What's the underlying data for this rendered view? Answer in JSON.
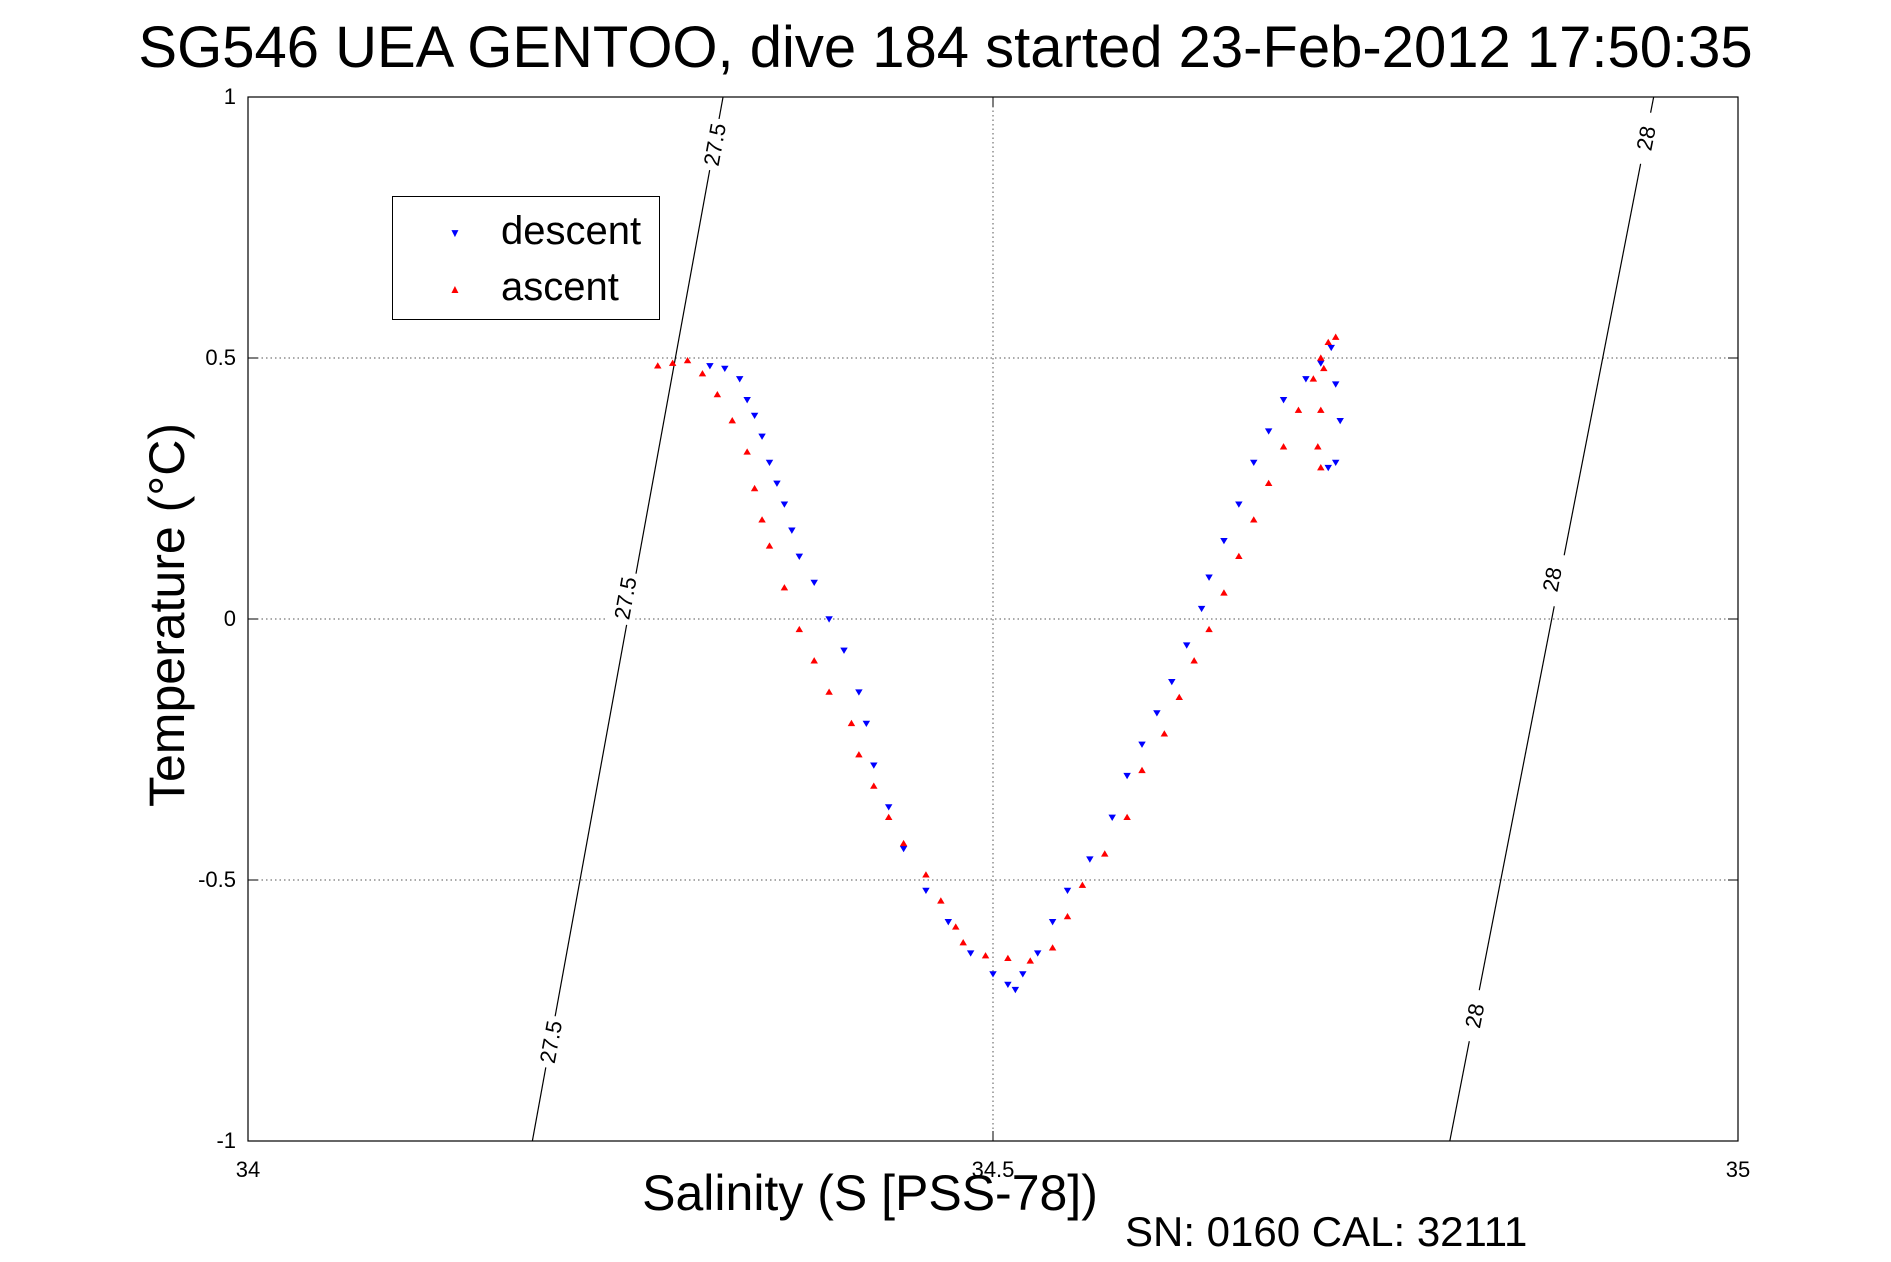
{
  "chart_data": {
    "type": "scatter",
    "title": "SG546 UEA GENTOO, dive 184 started 23-Feb-2012 17:50:35",
    "xlabel": "Salinity (S [PSS-78])",
    "ylabel": "Temperature (°C)",
    "xlim": [
      34,
      35
    ],
    "ylim": [
      -1,
      1
    ],
    "xticks": [
      34,
      34.5,
      35
    ],
    "xtick_labels": [
      "34",
      "34.5",
      "35"
    ],
    "yticks": [
      -1,
      -0.5,
      0,
      0.5,
      1
    ],
    "ytick_labels": [
      "-1",
      "-0.5",
      "0",
      "0.5",
      "1"
    ],
    "grid": true,
    "legend_position": "top-left",
    "series": [
      {
        "name": "descent",
        "color": "#0000ff",
        "marker": "triangle-down",
        "points": [
          [
            34.31,
            0.485
          ],
          [
            34.32,
            0.48
          ],
          [
            34.33,
            0.46
          ],
          [
            34.335,
            0.42
          ],
          [
            34.34,
            0.39
          ],
          [
            34.345,
            0.35
          ],
          [
            34.35,
            0.3
          ],
          [
            34.355,
            0.26
          ],
          [
            34.36,
            0.22
          ],
          [
            34.365,
            0.17
          ],
          [
            34.37,
            0.12
          ],
          [
            34.38,
            0.07
          ],
          [
            34.39,
            0.0
          ],
          [
            34.4,
            -0.06
          ],
          [
            34.41,
            -0.14
          ],
          [
            34.415,
            -0.2
          ],
          [
            34.42,
            -0.28
          ],
          [
            34.43,
            -0.36
          ],
          [
            34.44,
            -0.44
          ],
          [
            34.455,
            -0.52
          ],
          [
            34.47,
            -0.58
          ],
          [
            34.485,
            -0.64
          ],
          [
            34.5,
            -0.68
          ],
          [
            34.51,
            -0.7
          ],
          [
            34.515,
            -0.71
          ],
          [
            34.52,
            -0.68
          ],
          [
            34.53,
            -0.64
          ],
          [
            34.54,
            -0.58
          ],
          [
            34.55,
            -0.52
          ],
          [
            34.565,
            -0.46
          ],
          [
            34.58,
            -0.38
          ],
          [
            34.59,
            -0.3
          ],
          [
            34.6,
            -0.24
          ],
          [
            34.61,
            -0.18
          ],
          [
            34.62,
            -0.12
          ],
          [
            34.63,
            -0.05
          ],
          [
            34.64,
            0.02
          ],
          [
            34.645,
            0.08
          ],
          [
            34.655,
            0.15
          ],
          [
            34.665,
            0.22
          ],
          [
            34.675,
            0.3
          ],
          [
            34.685,
            0.36
          ],
          [
            34.695,
            0.42
          ],
          [
            34.71,
            0.46
          ],
          [
            34.72,
            0.49
          ],
          [
            34.727,
            0.52
          ],
          [
            34.73,
            0.45
          ],
          [
            34.733,
            0.38
          ],
          [
            34.73,
            0.3
          ],
          [
            34.725,
            0.29
          ]
        ]
      },
      {
        "name": "ascent",
        "color": "#ff0000",
        "marker": "triangle-up",
        "points": [
          [
            34.275,
            0.485
          ],
          [
            34.285,
            0.49
          ],
          [
            34.295,
            0.495
          ],
          [
            34.305,
            0.47
          ],
          [
            34.315,
            0.43
          ],
          [
            34.325,
            0.38
          ],
          [
            34.335,
            0.32
          ],
          [
            34.34,
            0.25
          ],
          [
            34.345,
            0.19
          ],
          [
            34.35,
            0.14
          ],
          [
            34.36,
            0.06
          ],
          [
            34.37,
            -0.02
          ],
          [
            34.38,
            -0.08
          ],
          [
            34.39,
            -0.14
          ],
          [
            34.405,
            -0.2
          ],
          [
            34.41,
            -0.26
          ],
          [
            34.42,
            -0.32
          ],
          [
            34.43,
            -0.38
          ],
          [
            34.44,
            -0.43
          ],
          [
            34.455,
            -0.49
          ],
          [
            34.465,
            -0.54
          ],
          [
            34.475,
            -0.59
          ],
          [
            34.48,
            -0.62
          ],
          [
            34.495,
            -0.645
          ],
          [
            34.51,
            -0.65
          ],
          [
            34.525,
            -0.655
          ],
          [
            34.54,
            -0.63
          ],
          [
            34.55,
            -0.57
          ],
          [
            34.56,
            -0.51
          ],
          [
            34.575,
            -0.45
          ],
          [
            34.59,
            -0.38
          ],
          [
            34.6,
            -0.29
          ],
          [
            34.615,
            -0.22
          ],
          [
            34.625,
            -0.15
          ],
          [
            34.635,
            -0.08
          ],
          [
            34.645,
            -0.02
          ],
          [
            34.655,
            0.05
          ],
          [
            34.665,
            0.12
          ],
          [
            34.675,
            0.19
          ],
          [
            34.685,
            0.26
          ],
          [
            34.695,
            0.33
          ],
          [
            34.705,
            0.4
          ],
          [
            34.715,
            0.46
          ],
          [
            34.72,
            0.5
          ],
          [
            34.725,
            0.53
          ],
          [
            34.73,
            0.54
          ],
          [
            34.722,
            0.48
          ],
          [
            34.72,
            0.4
          ],
          [
            34.718,
            0.33
          ],
          [
            34.72,
            0.29
          ]
        ]
      }
    ],
    "isopycnals": [
      {
        "label": "27.5",
        "label_positions": [
          [
            34.313,
            0.909
          ],
          [
            34.253,
            0.04
          ],
          [
            34.203,
            -0.81
          ]
        ]
      },
      {
        "label": "28",
        "label_positions": [
          [
            34.938,
            0.921
          ],
          [
            34.875,
            0.076
          ],
          [
            34.823,
            -0.76
          ]
        ]
      }
    ]
  },
  "footer": {
    "note": "SN: 0160  CAL: 32111"
  }
}
